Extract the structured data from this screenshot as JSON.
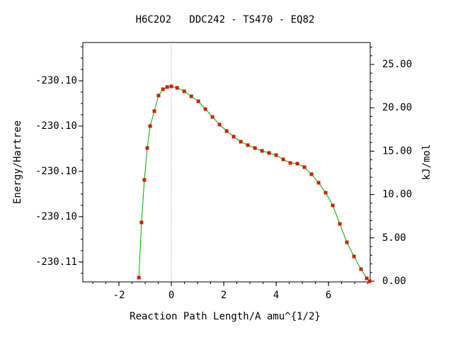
{
  "chart_data": {
    "type": "line",
    "title": "H6C2O2   DDC242 - TS470 - EQ82",
    "xlabel": "Reaction Path Length/A amu^{1/2}",
    "ylabel": "Energy/Hartree",
    "y2label": "kJ/mol",
    "xlim": [
      -3.38,
      7.59
    ],
    "xticks": [
      -2,
      0,
      2,
      4,
      6
    ],
    "ylim": [
      -230.10688,
      -230.09631
    ],
    "yticks": [
      {
        "value": -230.106,
        "label": "-230.11"
      },
      {
        "value": -230.104,
        "label": "-230.10"
      },
      {
        "value": -230.102,
        "label": "-230.10"
      },
      {
        "value": -230.1,
        "label": "-230.10"
      },
      {
        "value": -230.098,
        "label": "-230.10"
      }
    ],
    "y2lim": [
      -0.08,
      27.53
    ],
    "y2ticks": [
      {
        "value": 0,
        "label": "0.00"
      },
      {
        "value": 5,
        "label": "5.00"
      },
      {
        "value": 10,
        "label": "10.00"
      },
      {
        "value": 15,
        "label": "15.00"
      },
      {
        "value": 20,
        "label": "20.00"
      },
      {
        "value": 25,
        "label": "25.00"
      }
    ],
    "series": [
      {
        "line_color": "#00aa00",
        "color": "#cc2200",
        "axis": "y2",
        "x": [
          -1.24,
          -1.14,
          -1.03,
          -0.92,
          -0.81,
          -0.65,
          -0.49,
          -0.32,
          -0.16,
          0,
          0.22,
          0.49,
          0.76,
          1.03,
          1.3,
          1.57,
          1.84,
          2.11,
          2.38,
          2.65,
          2.92,
          3.19,
          3.46,
          3.73,
          4.0,
          4.27,
          4.54,
          4.81,
          5.08,
          5.35,
          5.62,
          5.89,
          6.16,
          6.43,
          6.7,
          6.97,
          7.24,
          7.46,
          7.57
        ],
        "values": [
          0.41,
          6.78,
          11.68,
          15.36,
          17.89,
          19.61,
          21.41,
          22.14,
          22.39,
          22.47,
          22.3,
          21.9,
          21.32,
          20.75,
          19.85,
          18.95,
          18.06,
          17.32,
          16.67,
          16.09,
          15.69,
          15.36,
          15.03,
          14.79,
          14.54,
          14.05,
          13.64,
          13.56,
          13.15,
          12.34,
          11.36,
          10.21,
          8.74,
          6.62,
          4.49,
          2.86,
          1.39,
          0.33,
          0
        ]
      }
    ]
  }
}
